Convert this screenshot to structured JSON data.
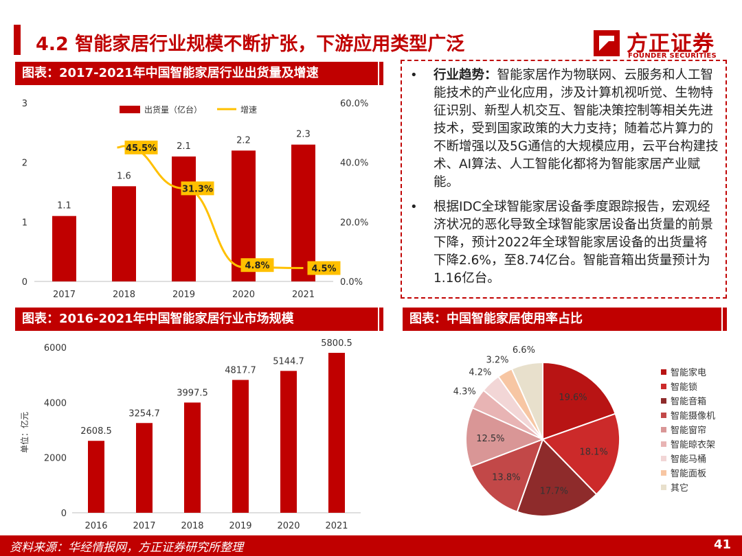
{
  "header": {
    "title": "4.2 智能家居行业规模不断扩张，下游应用类型广泛",
    "logo_cn": "方正证券",
    "logo_en": "FOUNDER SECURITIES"
  },
  "panel1": {
    "heading": "图表：2017-2021年中国智能家居行业出货量及增速"
  },
  "panel2": {
    "heading": "图表：2016-2021年中国智能家居行业市场规模"
  },
  "panel3": {
    "heading": "图表：中国智能家居使用率占比"
  },
  "bullets": [
    {
      "label": "行业趋势：",
      "text": "智能家居作为物联网、云服务和人工智能技术的产业化应用，涉及计算机视听觉、生物特征识别、新型人机交互、智能决策控制等相关先进技术，受到国家政策的大力支持；随着芯片算力的不断增强以及5G通信的大规模应用，云平台构建技术、AI算法、人工智能化都将为智能家居产业赋能。"
    },
    {
      "label": "",
      "text": "根据IDC全球智能家居设备季度跟踪报告，宏观经济状况的恶化导致全球智能家居设备出货量的前景下降，预计2022年全球智能家居设备的出货量将下降2.6%，至8.74亿台。智能音箱出货量预计为1.16亿台。"
    }
  ],
  "footer": {
    "source": "资料来源：华经情报网，方正证券研究所整理",
    "page": "41"
  },
  "colors": {
    "accent": "#c00000",
    "bar": "#c00000",
    "line": "#ffc000"
  },
  "chart_data": [
    {
      "type": "bar+line",
      "title": "2017-2021年中国智能家居行业出货量及增速",
      "categories": [
        "2017",
        "2018",
        "2019",
        "2020",
        "2021"
      ],
      "series": [
        {
          "name": "出货量（亿台）",
          "type": "bar",
          "values": [
            1.1,
            1.6,
            2.1,
            2.2,
            2.3
          ],
          "labels": [
            "1.1",
            "1.6",
            "2.1",
            "2.2",
            "2.3"
          ]
        },
        {
          "name": "增速",
          "type": "line",
          "axis": "right",
          "values": [
            null,
            45.5,
            31.3,
            4.8,
            4.5
          ],
          "labels": [
            "",
            "45.5%",
            "31.3%",
            "4.8%",
            "4.5%"
          ]
        }
      ],
      "ylim": [
        0,
        3
      ],
      "yticks": [
        "0",
        "1",
        "2",
        "3"
      ],
      "y2lim": [
        0,
        60
      ],
      "y2ticks": [
        "0.0%",
        "20.0%",
        "40.0%",
        "60.0%"
      ]
    },
    {
      "type": "bar",
      "title": "2016-2021年中国智能家居行业市场规模",
      "categories": [
        "2016",
        "2017",
        "2018",
        "2019",
        "2020",
        "2021"
      ],
      "values": [
        2608.5,
        3254.7,
        3997.5,
        4817.7,
        5144.7,
        5800.5
      ],
      "labels": [
        "2608.5",
        "3254.7",
        "3997.5",
        "4817.7",
        "5144.7",
        "5800.5"
      ],
      "ylabel": "单位：亿元",
      "ylim": [
        0,
        6000
      ],
      "yticks": [
        "0",
        "2000",
        "4000",
        "6000"
      ]
    },
    {
      "type": "pie",
      "title": "中国智能家居使用率占比",
      "categories": [
        "智能家电",
        "智能锁",
        "智能音箱",
        "智能摄像机",
        "智能窗帘",
        "智能晾衣架",
        "智能马桶",
        "智能面板",
        "其它"
      ],
      "values": [
        19.6,
        18.1,
        17.7,
        13.8,
        12.5,
        4.3,
        4.2,
        3.2,
        6.6
      ],
      "labels": [
        "19.6%",
        "18.1%",
        "17.7%",
        "13.8%",
        "12.5%",
        "4.3%",
        "4.2%",
        "3.2%",
        "6.6%"
      ],
      "colors": [
        "#b81414",
        "#cc2a2a",
        "#8e2b2b",
        "#c24848",
        "#d99696",
        "#e8b4b4",
        "#f2d6d6",
        "#f7c6a3",
        "#e8e0cc"
      ]
    }
  ]
}
